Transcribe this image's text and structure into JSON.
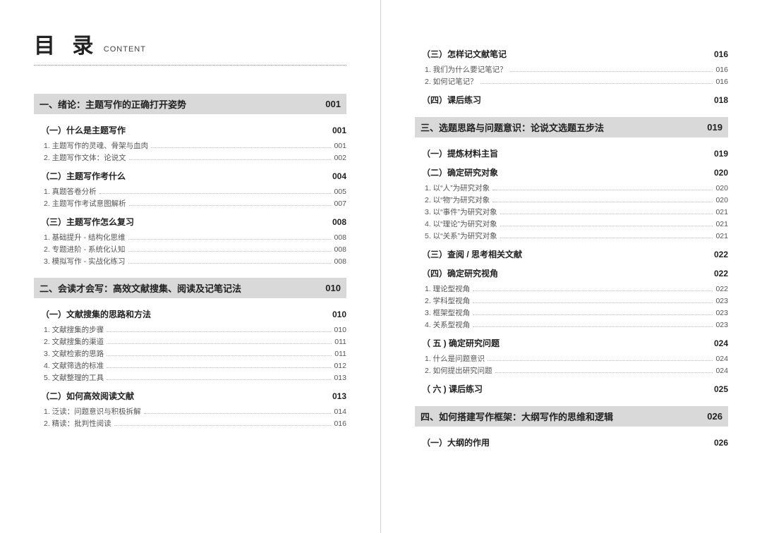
{
  "header": {
    "title_main": "目 录",
    "title_sub": "CONTENT"
  },
  "colors": {
    "chapter_bg": "#d9d9d9",
    "text_main": "#222222",
    "text_sub": "#555555",
    "dotted": "#bbbbbb",
    "divider": "#d0d0d0",
    "background": "#ffffff"
  },
  "typography": {
    "title_main_size": 30,
    "title_sub_size": 11,
    "chapter_size": 13,
    "section_size": 12,
    "item_size": 10.5
  },
  "left": {
    "chapters": [
      {
        "title": "一、绪论：主题写作的正确打开姿势",
        "page": "001",
        "sections": [
          {
            "title": "（一）什么是主题写作",
            "page": "001",
            "items": [
              {
                "title": "1. 主题写作的灵魂、骨架与血肉",
                "page": "001"
              },
              {
                "title": "2. 主题写作文体：论说文",
                "page": "002"
              }
            ]
          },
          {
            "title": "（二）主题写作考什么",
            "page": "004",
            "items": [
              {
                "title": "1. 真题答卷分析",
                "page": "005"
              },
              {
                "title": "2. 主题写作考试意图解析",
                "page": "007"
              }
            ]
          },
          {
            "title": "（三）主题写作怎么复习",
            "page": "008",
            "items": [
              {
                "title": "1. 基础提升 - 结构化思维",
                "page": "008"
              },
              {
                "title": "2. 专题进阶 - 系统化认知",
                "page": "008"
              },
              {
                "title": "3. 模拟写作 - 实战化练习",
                "page": "008"
              }
            ]
          }
        ]
      },
      {
        "title": "二、会读才会写：高效文献搜集、阅读及记笔记法",
        "page": "010",
        "sections": [
          {
            "title": "（一）文献搜集的思路和方法",
            "page": "010",
            "items": [
              {
                "title": "1. 文献搜集的步骤",
                "page": "010"
              },
              {
                "title": "2. 文献搜集的渠道",
                "page": "011"
              },
              {
                "title": "3. 文献检索的思路",
                "page": "011"
              },
              {
                "title": "4. 文献筛选的标准",
                "page": "012"
              },
              {
                "title": "5. 文献整理的工具",
                "page": "013"
              }
            ]
          },
          {
            "title": "（二）如何高效阅读文献",
            "page": "013",
            "items": [
              {
                "title": "1. 泛读：问题意识与积极拆解",
                "page": "014"
              },
              {
                "title": "2. 精读：批判性阅读",
                "page": "016"
              }
            ]
          }
        ]
      }
    ]
  },
  "right": {
    "pre_sections": [
      {
        "title": "（三）怎样记文献笔记",
        "page": "016",
        "items": [
          {
            "title": "1. 我们为什么要记笔记？",
            "page": "016"
          },
          {
            "title": "2. 如何记笔记？",
            "page": "016"
          }
        ]
      },
      {
        "title": "（四）课后练习",
        "page": "018",
        "items": []
      }
    ],
    "chapters": [
      {
        "title": "三、选题思路与问题意识：论说文选题五步法",
        "page": "019",
        "sections": [
          {
            "title": "（一）提炼材料主旨",
            "page": "019",
            "items": []
          },
          {
            "title": "（二）确定研究对象",
            "page": "020",
            "items": [
              {
                "title": "1. 以“人”为研究对象",
                "page": "020"
              },
              {
                "title": "2. 以“物”为研究对象",
                "page": "020"
              },
              {
                "title": "3. 以“事件”为研究对象",
                "page": "021"
              },
              {
                "title": "4. 以“理论”为研究对象",
                "page": "021"
              },
              {
                "title": "5. 以“关系”为研究对象",
                "page": "021"
              }
            ]
          },
          {
            "title": "（三）查阅 / 思考相关文献",
            "page": "022",
            "items": []
          },
          {
            "title": "（四）确定研究视角",
            "page": "022",
            "items": [
              {
                "title": "1. 理论型视角",
                "page": "022"
              },
              {
                "title": "2. 学科型视角",
                "page": "023"
              },
              {
                "title": "3. 框架型视角",
                "page": "023"
              },
              {
                "title": "4. 关系型视角",
                "page": "023"
              }
            ]
          },
          {
            "title": "（ 五 ) 确定研究问题",
            "page": "024",
            "items": [
              {
                "title": "1. 什么是问题意识",
                "page": "024"
              },
              {
                "title": "2. 如何提出研究问题",
                "page": "024"
              }
            ]
          },
          {
            "title": "（ 六 ) 课后练习",
            "page": "025",
            "items": []
          }
        ]
      },
      {
        "title": "四、如何搭建写作框架：大纲写作的思维和逻辑",
        "page": "026",
        "sections": [
          {
            "title": "（一）大纲的作用",
            "page": "026",
            "items": []
          }
        ]
      }
    ]
  }
}
